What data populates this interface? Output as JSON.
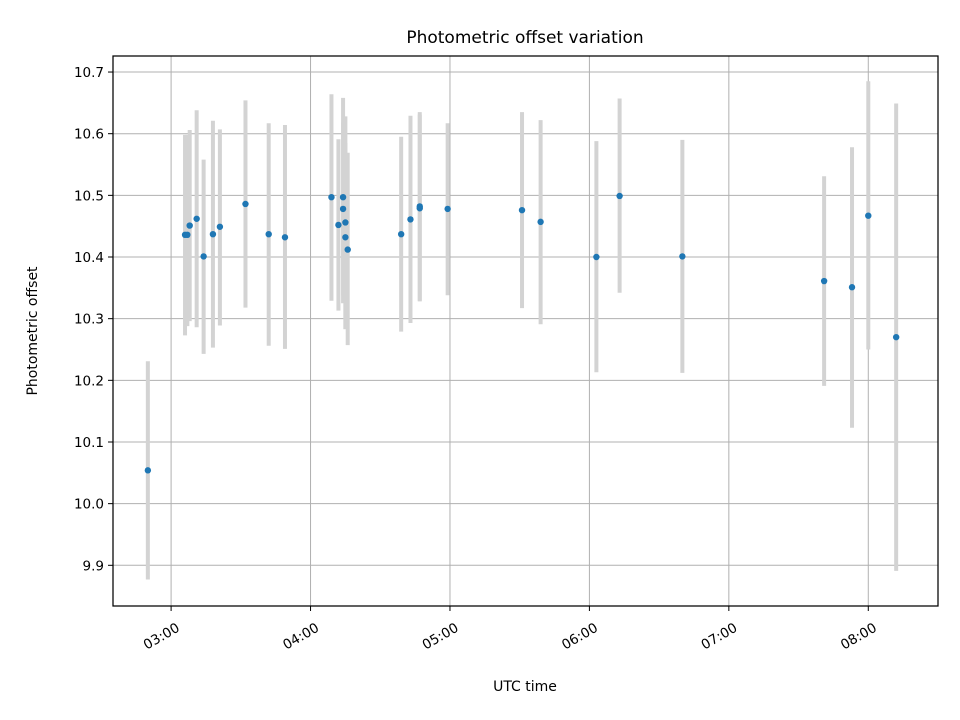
{
  "chart_data": {
    "type": "scatter",
    "title": "Photometric offset variation",
    "xlabel": "UTC time",
    "ylabel": "Photometric offset",
    "xlim": [
      "02:35",
      "08:30"
    ],
    "ylim": [
      9.834,
      10.726
    ],
    "x_ticks": [
      "03:00",
      "04:00",
      "05:00",
      "06:00",
      "07:00",
      "08:00"
    ],
    "y_ticks": [
      "9.9",
      "10.0",
      "10.1",
      "10.2",
      "10.3",
      "10.4",
      "10.5",
      "10.6",
      "10.7"
    ],
    "grid": true,
    "marker_color": "#1f77b4",
    "errorbar_color": "#d3d3d3",
    "points": [
      {
        "x": "02:50",
        "y": 10.054,
        "ylo": 9.877,
        "yhi": 10.231
      },
      {
        "x": "03:06",
        "y": 10.436,
        "ylo": 10.273,
        "yhi": 10.598
      },
      {
        "x": "03:07",
        "y": 10.436,
        "ylo": 10.288,
        "yhi": 10.598
      },
      {
        "x": "03:08",
        "y": 10.451,
        "ylo": 10.296,
        "yhi": 10.606
      },
      {
        "x": "03:11",
        "y": 10.462,
        "ylo": 10.286,
        "yhi": 10.638
      },
      {
        "x": "03:14",
        "y": 10.401,
        "ylo": 10.243,
        "yhi": 10.558
      },
      {
        "x": "03:18",
        "y": 10.437,
        "ylo": 10.253,
        "yhi": 10.621
      },
      {
        "x": "03:21",
        "y": 10.449,
        "ylo": 10.289,
        "yhi": 10.607
      },
      {
        "x": "03:32",
        "y": 10.486,
        "ylo": 10.318,
        "yhi": 10.654
      },
      {
        "x": "03:42",
        "y": 10.437,
        "ylo": 10.256,
        "yhi": 10.617
      },
      {
        "x": "03:49",
        "y": 10.432,
        "ylo": 10.251,
        "yhi": 10.614
      },
      {
        "x": "04:09",
        "y": 10.497,
        "ylo": 10.329,
        "yhi": 10.664
      },
      {
        "x": "04:12",
        "y": 10.452,
        "ylo": 10.313,
        "yhi": 10.591
      },
      {
        "x": "04:14",
        "y": 10.497,
        "ylo": 10.325,
        "yhi": 10.658
      },
      {
        "x": "04:14",
        "y": 10.478,
        "ylo": 10.338,
        "yhi": 10.618
      },
      {
        "x": "04:15",
        "y": 10.456,
        "ylo": 10.283,
        "yhi": 10.628
      },
      {
        "x": "04:15",
        "y": 10.432,
        "ylo": 10.283,
        "yhi": 10.585
      },
      {
        "x": "04:16",
        "y": 10.412,
        "ylo": 10.257,
        "yhi": 10.569
      },
      {
        "x": "04:39",
        "y": 10.437,
        "ylo": 10.279,
        "yhi": 10.595
      },
      {
        "x": "04:43",
        "y": 10.461,
        "ylo": 10.293,
        "yhi": 10.629
      },
      {
        "x": "04:47",
        "y": 10.482,
        "ylo": 10.328,
        "yhi": 10.635
      },
      {
        "x": "04:47",
        "y": 10.479,
        "ylo": 10.329,
        "yhi": 10.631
      },
      {
        "x": "04:59",
        "y": 10.478,
        "ylo": 10.338,
        "yhi": 10.617
      },
      {
        "x": "05:31",
        "y": 10.476,
        "ylo": 10.317,
        "yhi": 10.635
      },
      {
        "x": "05:39",
        "y": 10.457,
        "ylo": 10.291,
        "yhi": 10.622
      },
      {
        "x": "06:03",
        "y": 10.4,
        "ylo": 10.213,
        "yhi": 10.588
      },
      {
        "x": "06:13",
        "y": 10.499,
        "ylo": 10.342,
        "yhi": 10.657
      },
      {
        "x": "06:40",
        "y": 10.401,
        "ylo": 10.212,
        "yhi": 10.59
      },
      {
        "x": "07:41",
        "y": 10.361,
        "ylo": 10.191,
        "yhi": 10.531
      },
      {
        "x": "07:53",
        "y": 10.351,
        "ylo": 10.123,
        "yhi": 10.578
      },
      {
        "x": "08:00",
        "y": 10.467,
        "ylo": 10.25,
        "yhi": 10.685
      },
      {
        "x": "08:12",
        "y": 10.27,
        "ylo": 9.891,
        "yhi": 10.649
      }
    ]
  }
}
